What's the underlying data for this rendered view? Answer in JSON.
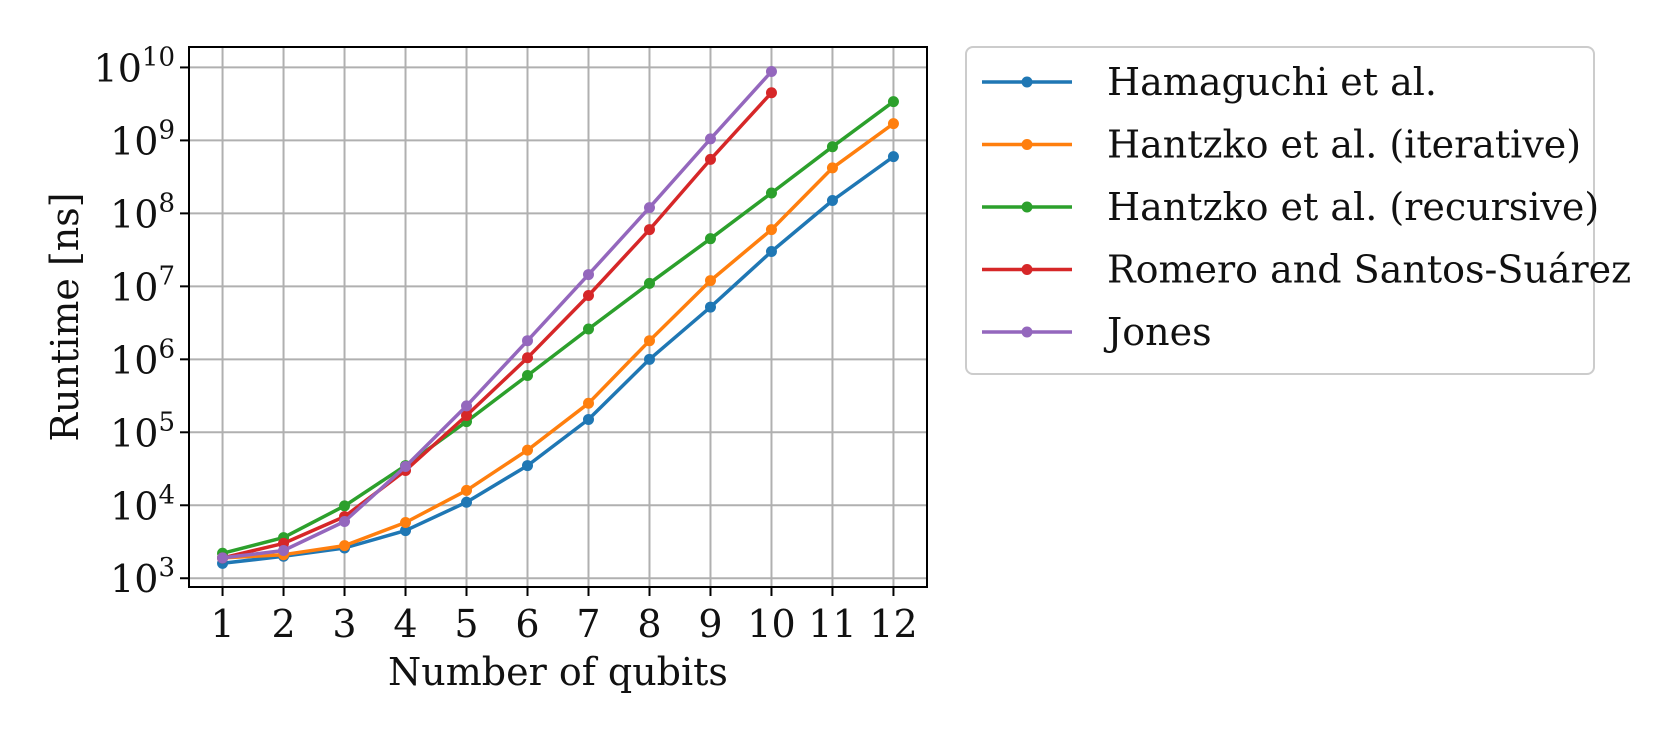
{
  "chart_data": {
    "type": "line",
    "title": "",
    "xlabel": "Number of qubits",
    "ylabel": "Runtime [ns]",
    "xlim": [
      0.45,
      12.55
    ],
    "ylim": [
      2.88,
      10.28
    ],
    "yscale": "log",
    "grid": true,
    "legend_placement": "outside-top-right",
    "x_ticks": [
      1,
      2,
      3,
      4,
      5,
      6,
      7,
      8,
      9,
      10,
      11,
      12
    ],
    "y_ticks": [
      {
        "base": "10",
        "exp": "3",
        "value": 1000
      },
      {
        "base": "10",
        "exp": "4",
        "value": 10000
      },
      {
        "base": "10",
        "exp": "5",
        "value": 100000
      },
      {
        "base": "10",
        "exp": "6",
        "value": 1000000
      },
      {
        "base": "10",
        "exp": "7",
        "value": 10000000
      },
      {
        "base": "10",
        "exp": "8",
        "value": 100000000
      },
      {
        "base": "10",
        "exp": "9",
        "value": 1000000000
      },
      {
        "base": "10",
        "exp": "10",
        "value": 10000000000
      }
    ],
    "series": [
      {
        "name": "Hamaguchi et al.",
        "color": "#1f77b4",
        "x": [
          1,
          2,
          3,
          4,
          5,
          6,
          7,
          8,
          9,
          10,
          11,
          12
        ],
        "y": [
          1600,
          2000,
          2600,
          4500,
          11000,
          35000,
          150000,
          1000000,
          5200000,
          30000000,
          150000000,
          600000000
        ]
      },
      {
        "name": "Hantzko et al. (iterative)",
        "color": "#ff7f0e",
        "x": [
          1,
          2,
          3,
          4,
          5,
          6,
          7,
          8,
          9,
          10,
          11,
          12
        ],
        "y": [
          1900,
          2100,
          2800,
          5800,
          16000,
          57000,
          250000,
          1800000,
          12000000,
          60000000,
          420000000,
          1700000000
        ]
      },
      {
        "name": "Hantzko et al. (recursive)",
        "color": "#2ca02c",
        "x": [
          1,
          2,
          3,
          4,
          5,
          6,
          7,
          8,
          9,
          10,
          11,
          12
        ],
        "y": [
          2200,
          3600,
          9800,
          35000,
          140000,
          600000,
          2600000,
          11000000,
          45000000,
          190000000,
          820000000,
          3400000000
        ]
      },
      {
        "name": "Romero and Santos-Suárez",
        "color": "#d62728",
        "x": [
          1,
          2,
          3,
          4,
          5,
          6,
          7,
          8,
          9,
          10
        ],
        "y": [
          1900,
          3000,
          7000,
          30000,
          170000,
          1050000,
          7500000,
          60000000,
          550000000,
          4500000000
        ]
      },
      {
        "name": "Jones",
        "color": "#9467bd",
        "x": [
          1,
          2,
          3,
          4,
          5,
          6,
          7,
          8,
          9,
          10
        ],
        "y": [
          1900,
          2400,
          6000,
          34000,
          230000,
          1800000,
          14500000,
          120000000,
          1050000000,
          8800000000
        ]
      }
    ]
  }
}
